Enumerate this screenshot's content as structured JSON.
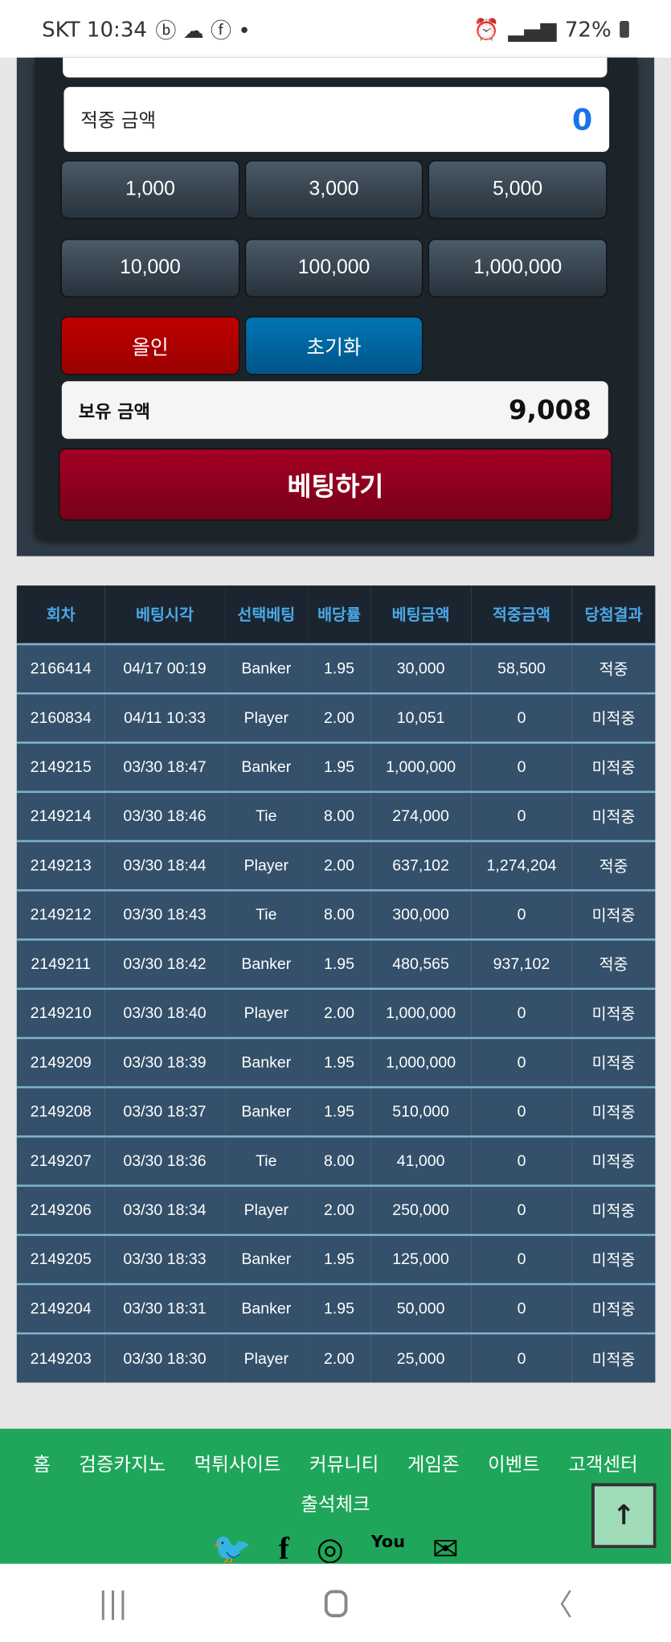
{
  "status_bar": {
    "carrier_time": "SKT 10:34",
    "battery": "72%"
  },
  "bet_panel": {
    "win_amount_label": "적중 금액",
    "win_amount_value": "0",
    "chips": [
      "1,000",
      "3,000",
      "5,000",
      "10,000",
      "100,000",
      "1,000,000"
    ],
    "all_in_label": "올인",
    "reset_label": "초기화",
    "balance_label": "보유 금액",
    "balance_value": "9,008",
    "bet_label": "베팅하기",
    "colors": {
      "accent_blue": "#1a73e8",
      "all_in": "#b30000",
      "reset": "#0068a0",
      "bet": "#9a0020"
    }
  },
  "history": {
    "headers": [
      "회차",
      "베팅시각",
      "선택베팅",
      "배당률",
      "베팅금액",
      "적중금액",
      "당첨결과"
    ],
    "rows": [
      [
        "2166414",
        "04/17 00:19",
        "Banker",
        "1.95",
        "30,000",
        "58,500",
        "적중"
      ],
      [
        "2160834",
        "04/11 10:33",
        "Player",
        "2.00",
        "10,051",
        "0",
        "미적중"
      ],
      [
        "2149215",
        "03/30 18:47",
        "Banker",
        "1.95",
        "1,000,000",
        "0",
        "미적중"
      ],
      [
        "2149214",
        "03/30 18:46",
        "Tie",
        "8.00",
        "274,000",
        "0",
        "미적중"
      ],
      [
        "2149213",
        "03/30 18:44",
        "Player",
        "2.00",
        "637,102",
        "1,274,204",
        "적중"
      ],
      [
        "2149212",
        "03/30 18:43",
        "Tie",
        "8.00",
        "300,000",
        "0",
        "미적중"
      ],
      [
        "2149211",
        "03/30 18:42",
        "Banker",
        "1.95",
        "480,565",
        "937,102",
        "적중"
      ],
      [
        "2149210",
        "03/30 18:40",
        "Player",
        "2.00",
        "1,000,000",
        "0",
        "미적중"
      ],
      [
        "2149209",
        "03/30 18:39",
        "Banker",
        "1.95",
        "1,000,000",
        "0",
        "미적중"
      ],
      [
        "2149208",
        "03/30 18:37",
        "Banker",
        "1.95",
        "510,000",
        "0",
        "미적중"
      ],
      [
        "2149207",
        "03/30 18:36",
        "Tie",
        "8.00",
        "41,000",
        "0",
        "미적중"
      ],
      [
        "2149206",
        "03/30 18:34",
        "Player",
        "2.00",
        "250,000",
        "0",
        "미적중"
      ],
      [
        "2149205",
        "03/30 18:33",
        "Banker",
        "1.95",
        "125,000",
        "0",
        "미적중"
      ],
      [
        "2149204",
        "03/30 18:31",
        "Banker",
        "1.95",
        "50,000",
        "0",
        "미적중"
      ],
      [
        "2149203",
        "03/30 18:30",
        "Player",
        "2.00",
        "25,000",
        "0",
        "미적중"
      ]
    ]
  },
  "footer": {
    "menu": [
      "홈",
      "검증카지노",
      "먹튀사이트",
      "커뮤니티",
      "게임존",
      "이벤트",
      "고객센터"
    ],
    "menu2": "출석체크",
    "social": [
      "twitter-icon",
      "facebook-icon",
      "instagram-icon",
      "youtube-icon",
      "mail-icon"
    ],
    "youtube_text": "You"
  }
}
